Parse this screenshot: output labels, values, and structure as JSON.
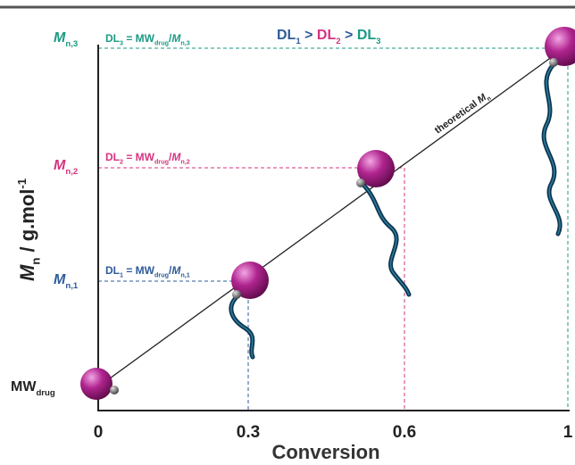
{
  "relation": [
    {
      "text": "DL",
      "sub": "1",
      "color": "#2d5b9a"
    },
    {
      "text": " > ",
      "color": "#2d5b9a"
    },
    {
      "text": "DL",
      "sub": "2",
      "color": "#d6337f"
    },
    {
      "text": " > ",
      "color": "#2d5b9a"
    },
    {
      "text": "DL",
      "sub": "3",
      "color": "#1a9a83"
    }
  ],
  "annotations": [
    {
      "color": "#1a9a83",
      "parts": [
        {
          "text": "DL",
          "sub": "3"
        },
        {
          "text": " = MW",
          "sub": "drug"
        },
        {
          "text": "/"
        },
        {
          "text": "M",
          "sub": "n,3",
          "italic": true
        }
      ]
    },
    {
      "color": "#d6337f",
      "parts": [
        {
          "text": "DL",
          "sub": "2"
        },
        {
          "text": " = MW",
          "sub": "drug"
        },
        {
          "text": "/"
        },
        {
          "text": "M",
          "sub": "n,2",
          "italic": true
        }
      ]
    },
    {
      "color": "#2d5b9a",
      "parts": [
        {
          "text": "DL",
          "sub": "1"
        },
        {
          "text": " = MW",
          "sub": "drug"
        },
        {
          "text": "/"
        },
        {
          "text": "M",
          "sub": "n,1",
          "italic": true
        }
      ]
    }
  ],
  "y_tick_labels": [
    {
      "color": "#1a9a83",
      "parts": [
        {
          "text": "M",
          "sub": "n,3",
          "italic": true
        }
      ]
    },
    {
      "color": "#d6337f",
      "parts": [
        {
          "text": "M",
          "sub": "n,2",
          "italic": true
        }
      ]
    },
    {
      "color": "#2d5b9a",
      "parts": [
        {
          "text": "M",
          "sub": "n,1",
          "italic": true
        }
      ]
    },
    {
      "color": "#222222",
      "parts": [
        {
          "text": "MW",
          "sub": "drug"
        }
      ]
    }
  ],
  "y_axis_label": [
    {
      "text": "M",
      "sub": "n",
      "italic": true
    },
    {
      "text": " / g.mol",
      "sup": "-1"
    }
  ],
  "x_axis_label": "Conversion",
  "x_tick_labels": [
    "0",
    "0.3",
    "0.6",
    "1"
  ],
  "line_label": [
    {
      "text": "theoretical "
    },
    {
      "text": "M",
      "sub": "n",
      "italic": true
    }
  ]
}
